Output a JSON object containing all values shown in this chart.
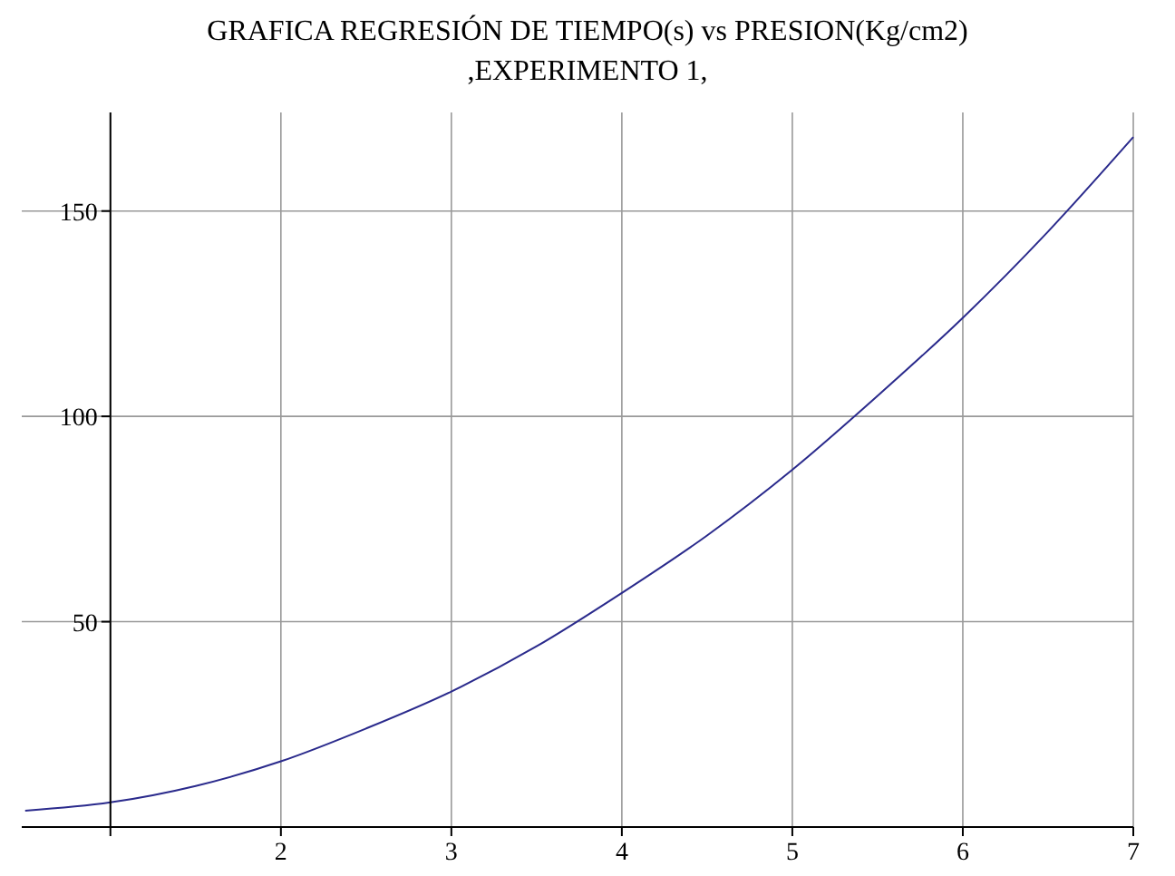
{
  "chart_data": {
    "type": "line",
    "title": "GRAFICA REGRESIÓN DE TIEMPO(s) vs PRESION(Kg/cm2)\n,EXPERIMENTO 1,",
    "x": [
      0.5,
      1,
      1.5,
      2,
      2.5,
      3,
      3.5,
      4,
      4.5,
      5,
      5.5,
      6,
      6.5,
      7
    ],
    "series": [
      {
        "color": "#2a2a8c",
        "values": [
          4,
          6,
          10,
          16,
          24,
          33,
          44,
          57,
          71,
          87,
          105,
          124,
          145,
          168
        ]
      }
    ],
    "xlim": [
      0.48,
      7
    ],
    "ylim": [
      0,
      174
    ],
    "xticks": [
      {
        "value": 1,
        "label": null
      },
      2,
      3,
      4,
      5,
      6,
      7
    ],
    "yticks": [
      50,
      100,
      150
    ],
    "grid": true,
    "marker": "none",
    "line_style": "solid"
  }
}
